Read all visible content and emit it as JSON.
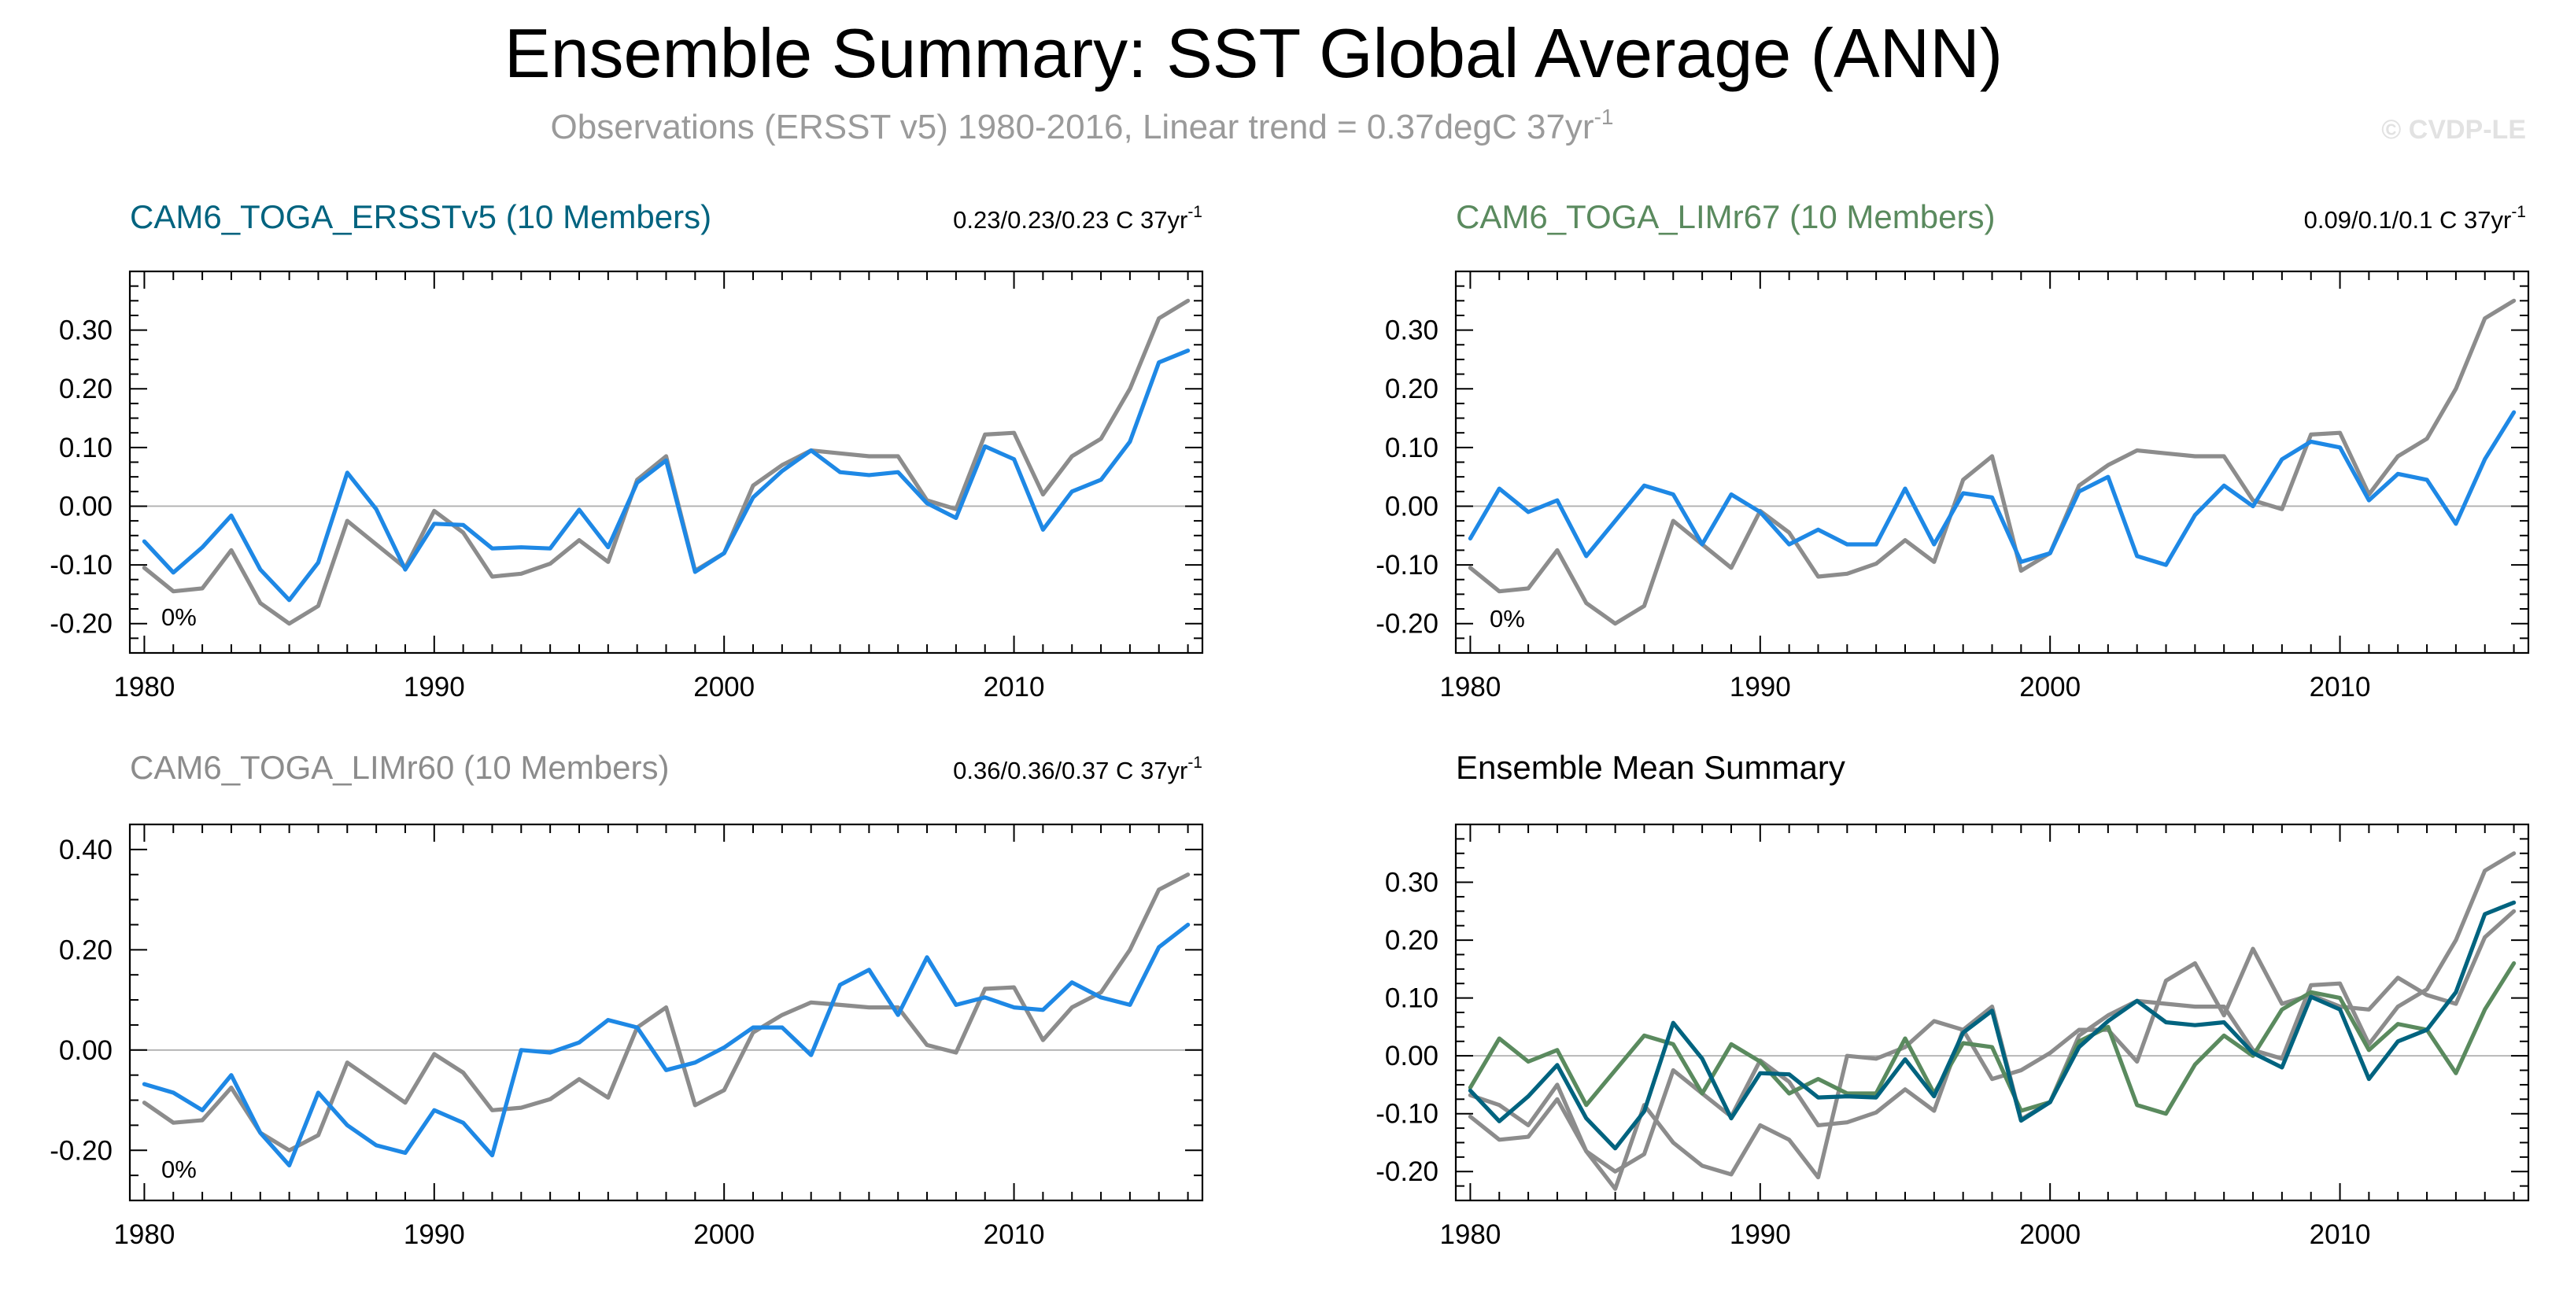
{
  "title": "Ensemble Summary: SST Global Average (ANN)",
  "subtitle": {
    "text": "Observations (ERSST v5) 1980-2016, Linear trend = 0.37degC 37yr",
    "superscript": "-1"
  },
  "credit": "© CVDP-LE",
  "colors": {
    "obs": "#8c8c8c",
    "model_blue": "#1e88e5",
    "ersst_title": "#00637f",
    "limr67_title": "#5a8a5e",
    "limr60_title": "#8c8c8c",
    "mean_ersst": "#00637f",
    "mean_limr67": "#5a8a5e",
    "mean_limr60": "#8c8c8c"
  },
  "panels": [
    {
      "title": "CAM6_TOGA_ERSSTv5 (10 Members)",
      "trend": {
        "text": "0.23/0.23/0.23 C 37yr",
        "superscript": "-1"
      },
      "percent": "0%"
    },
    {
      "title": "CAM6_TOGA_LIMr67 (10 Members)",
      "trend": {
        "text": "0.09/0.1/0.1 C 37yr",
        "superscript": "-1"
      },
      "percent": "0%"
    },
    {
      "title": "CAM6_TOGA_LIMr60 (10 Members)",
      "trend": {
        "text": "0.36/0.36/0.37 C 37yr",
        "superscript": "-1"
      },
      "percent": "0%"
    },
    {
      "title": "Ensemble Mean Summary"
    }
  ],
  "chart_data": [
    {
      "type": "line",
      "panel": "CAM6_TOGA_ERSSTv5 (10 Members)",
      "x_start": 1980,
      "xlim": [
        1979.5,
        2016.5
      ],
      "ylim": [
        -0.25,
        0.4
      ],
      "x_ticks": [
        "1980",
        "1990",
        "2000",
        "2010"
      ],
      "y_ticks": [
        "0.30",
        "0.20",
        "0.10",
        "0.00",
        "-0.10",
        "-0.20"
      ],
      "series": [
        {
          "name": "Observations (ERSST v5)",
          "color": "#8c8c8c",
          "values": [
            -0.105,
            -0.145,
            -0.14,
            -0.075,
            -0.165,
            -0.2,
            -0.17,
            -0.025,
            -0.065,
            -0.105,
            -0.008,
            -0.045,
            -0.12,
            -0.115,
            -0.098,
            -0.058,
            -0.095,
            0.045,
            0.085,
            -0.11,
            -0.08,
            0.035,
            0.07,
            0.095,
            0.09,
            0.085,
            0.085,
            0.01,
            -0.005,
            0.122,
            0.125,
            0.02,
            0.085,
            0.115,
            0.2,
            0.32,
            0.35
          ]
        },
        {
          "name": "CAM6_TOGA_ERSSTv5 ensemble mean",
          "color": "#1e88e5",
          "values": [
            -0.06,
            -0.113,
            -0.07,
            -0.016,
            -0.108,
            -0.16,
            -0.096,
            0.057,
            -0.005,
            -0.108,
            -0.03,
            -0.032,
            -0.072,
            -0.07,
            -0.072,
            -0.006,
            -0.07,
            0.04,
            0.078,
            -0.112,
            -0.08,
            0.015,
            0.06,
            0.095,
            0.058,
            0.053,
            0.058,
            0.005,
            -0.02,
            0.102,
            0.08,
            -0.04,
            0.025,
            0.045,
            0.11,
            0.245,
            0.265
          ]
        }
      ]
    },
    {
      "type": "line",
      "panel": "CAM6_TOGA_LIMr67 (10 Members)",
      "x_start": 1980,
      "xlim": [
        1979.5,
        2016.5
      ],
      "ylim": [
        -0.25,
        0.4
      ],
      "x_ticks": [
        "1980",
        "1990",
        "2000",
        "2010"
      ],
      "y_ticks": [
        "0.30",
        "0.20",
        "0.10",
        "0.00",
        "-0.10",
        "-0.20"
      ],
      "series": [
        {
          "name": "Observations (ERSST v5)",
          "color": "#8c8c8c",
          "values": [
            -0.105,
            -0.145,
            -0.14,
            -0.075,
            -0.165,
            -0.2,
            -0.17,
            -0.025,
            -0.065,
            -0.105,
            -0.008,
            -0.045,
            -0.12,
            -0.115,
            -0.098,
            -0.058,
            -0.095,
            0.045,
            0.085,
            -0.11,
            -0.08,
            0.035,
            0.07,
            0.095,
            0.09,
            0.085,
            0.085,
            0.01,
            -0.005,
            0.122,
            0.125,
            0.02,
            0.085,
            0.115,
            0.2,
            0.32,
            0.35
          ]
        },
        {
          "name": "CAM6_TOGA_LIMr67 ensemble mean",
          "color": "#1e88e5",
          "values": [
            -0.055,
            0.03,
            -0.01,
            0.01,
            -0.085,
            -0.025,
            0.035,
            0.02,
            -0.065,
            0.02,
            -0.01,
            -0.065,
            -0.04,
            -0.065,
            -0.065,
            0.03,
            -0.065,
            0.022,
            0.015,
            -0.095,
            -0.08,
            0.025,
            0.05,
            -0.085,
            -0.1,
            -0.015,
            0.035,
            0.0,
            0.08,
            0.11,
            0.1,
            0.01,
            0.055,
            0.045,
            -0.03,
            0.08,
            0.16
          ]
        }
      ]
    },
    {
      "type": "line",
      "panel": "CAM6_TOGA_LIMr60 (10 Members)",
      "x_start": 1980,
      "xlim": [
        1979.5,
        2016.5
      ],
      "ylim": [
        -0.3,
        0.45
      ],
      "x_ticks": [
        "1980",
        "1990",
        "2000",
        "2010"
      ],
      "y_ticks": [
        "0.40",
        "0.20",
        "0.00",
        "-0.20"
      ],
      "series": [
        {
          "name": "Observations (ERSST v5)",
          "color": "#8c8c8c",
          "values": [
            -0.105,
            -0.145,
            -0.14,
            -0.075,
            -0.165,
            -0.2,
            -0.17,
            -0.025,
            -0.065,
            -0.105,
            -0.008,
            -0.045,
            -0.12,
            -0.115,
            -0.098,
            -0.058,
            -0.095,
            0.045,
            0.085,
            -0.11,
            -0.08,
            0.035,
            0.07,
            0.095,
            0.09,
            0.085,
            0.085,
            0.01,
            -0.005,
            0.122,
            0.125,
            0.02,
            0.085,
            0.115,
            0.2,
            0.32,
            0.35
          ]
        },
        {
          "name": "CAM6_TOGA_LIMr60 ensemble mean",
          "color": "#1e88e5",
          "values": [
            -0.068,
            -0.085,
            -0.12,
            -0.05,
            -0.165,
            -0.23,
            -0.085,
            -0.15,
            -0.19,
            -0.205,
            -0.12,
            -0.145,
            -0.21,
            0.0,
            -0.005,
            0.015,
            0.06,
            0.045,
            -0.04,
            -0.025,
            0.005,
            0.045,
            0.045,
            -0.01,
            0.13,
            0.16,
            0.07,
            0.185,
            0.09,
            0.105,
            0.085,
            0.08,
            0.135,
            0.105,
            0.09,
            0.205,
            0.25
          ]
        }
      ]
    },
    {
      "type": "line",
      "panel": "Ensemble Mean Summary",
      "x_start": 1980,
      "xlim": [
        1979.5,
        2016.5
      ],
      "ylim": [
        -0.25,
        0.4
      ],
      "x_ticks": [
        "1980",
        "1990",
        "2000",
        "2010"
      ],
      "y_ticks": [
        "0.30",
        "0.20",
        "0.10",
        "0.00",
        "-0.10",
        "-0.20"
      ],
      "series": [
        {
          "name": "Observations (ERSST v5)",
          "color": "#8c8c8c",
          "values": [
            -0.105,
            -0.145,
            -0.14,
            -0.075,
            -0.165,
            -0.2,
            -0.17,
            -0.025,
            -0.065,
            -0.105,
            -0.008,
            -0.045,
            -0.12,
            -0.115,
            -0.098,
            -0.058,
            -0.095,
            0.045,
            0.085,
            -0.11,
            -0.08,
            0.035,
            0.07,
            0.095,
            0.09,
            0.085,
            0.085,
            0.01,
            -0.005,
            0.122,
            0.125,
            0.02,
            0.085,
            0.115,
            0.2,
            0.32,
            0.35
          ]
        },
        {
          "name": "CAM6_TOGA_LIMr60",
          "color": "#8c8c8c",
          "values": [
            -0.068,
            -0.085,
            -0.12,
            -0.05,
            -0.165,
            -0.23,
            -0.085,
            -0.15,
            -0.19,
            -0.205,
            -0.12,
            -0.145,
            -0.21,
            0.0,
            -0.005,
            0.015,
            0.06,
            0.045,
            -0.04,
            -0.025,
            0.005,
            0.045,
            0.045,
            -0.01,
            0.13,
            0.16,
            0.07,
            0.185,
            0.09,
            0.105,
            0.085,
            0.08,
            0.135,
            0.105,
            0.09,
            0.205,
            0.25
          ]
        },
        {
          "name": "CAM6_TOGA_LIMr67",
          "color": "#5a8a5e",
          "values": [
            -0.055,
            0.03,
            -0.01,
            0.01,
            -0.085,
            -0.025,
            0.035,
            0.02,
            -0.065,
            0.02,
            -0.01,
            -0.065,
            -0.04,
            -0.065,
            -0.065,
            0.03,
            -0.065,
            0.022,
            0.015,
            -0.095,
            -0.08,
            0.025,
            0.05,
            -0.085,
            -0.1,
            -0.015,
            0.035,
            0.0,
            0.08,
            0.11,
            0.1,
            0.01,
            0.055,
            0.045,
            -0.03,
            0.08,
            0.16
          ]
        },
        {
          "name": "CAM6_TOGA_ERSSTv5",
          "color": "#00637f",
          "values": [
            -0.06,
            -0.113,
            -0.07,
            -0.016,
            -0.108,
            -0.16,
            -0.096,
            0.057,
            -0.005,
            -0.108,
            -0.03,
            -0.032,
            -0.072,
            -0.07,
            -0.072,
            -0.006,
            -0.07,
            0.04,
            0.078,
            -0.112,
            -0.08,
            0.015,
            0.06,
            0.095,
            0.058,
            0.053,
            0.058,
            0.005,
            -0.02,
            0.102,
            0.08,
            -0.04,
            0.025,
            0.045,
            0.11,
            0.245,
            0.265
          ]
        }
      ]
    }
  ]
}
